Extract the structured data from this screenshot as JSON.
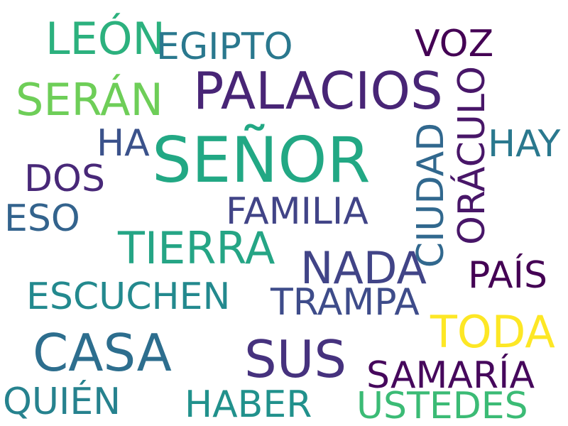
{
  "words": [
    {
      "text": "SEÑOR",
      "color": "#22a884"
    },
    {
      "text": "PALACIOS",
      "color": "#482576"
    },
    {
      "text": "CASA",
      "color": "#2d6e8e"
    },
    {
      "text": "SUS",
      "color": "#46327e"
    },
    {
      "text": "NADA",
      "color": "#414487"
    },
    {
      "text": "TIERRA",
      "color": "#25a585"
    },
    {
      "text": "SERÁN",
      "color": "#6ece58"
    },
    {
      "text": "LEÓN",
      "color": "#2cb17e"
    },
    {
      "text": "ORÁCULO",
      "color": "#481668"
    },
    {
      "text": "CIUDAD",
      "color": "#31688e"
    },
    {
      "text": "TODA",
      "color": "#fde725"
    },
    {
      "text": "EGIPTO",
      "color": "#2a788e"
    },
    {
      "text": "VOZ",
      "color": "#440154"
    },
    {
      "text": "HAY",
      "color": "#2a788e"
    },
    {
      "text": "HA",
      "color": "#3b528b"
    },
    {
      "text": "DOS",
      "color": "#482878"
    },
    {
      "text": "ESO",
      "color": "#33638d"
    },
    {
      "text": "FAMILIA",
      "color": "#414487"
    },
    {
      "text": "PAÍS",
      "color": "#440154"
    },
    {
      "text": "ESCUCHEN",
      "color": "#23898e"
    },
    {
      "text": "TRAMPA",
      "color": "#3e4c8a"
    },
    {
      "text": "SAMARÍA",
      "color": "#46085c"
    },
    {
      "text": "USTEDES",
      "color": "#3bbb75"
    },
    {
      "text": "HABER",
      "color": "#21918c"
    },
    {
      "text": "QUIÉN",
      "color": "#26828e"
    }
  ]
}
